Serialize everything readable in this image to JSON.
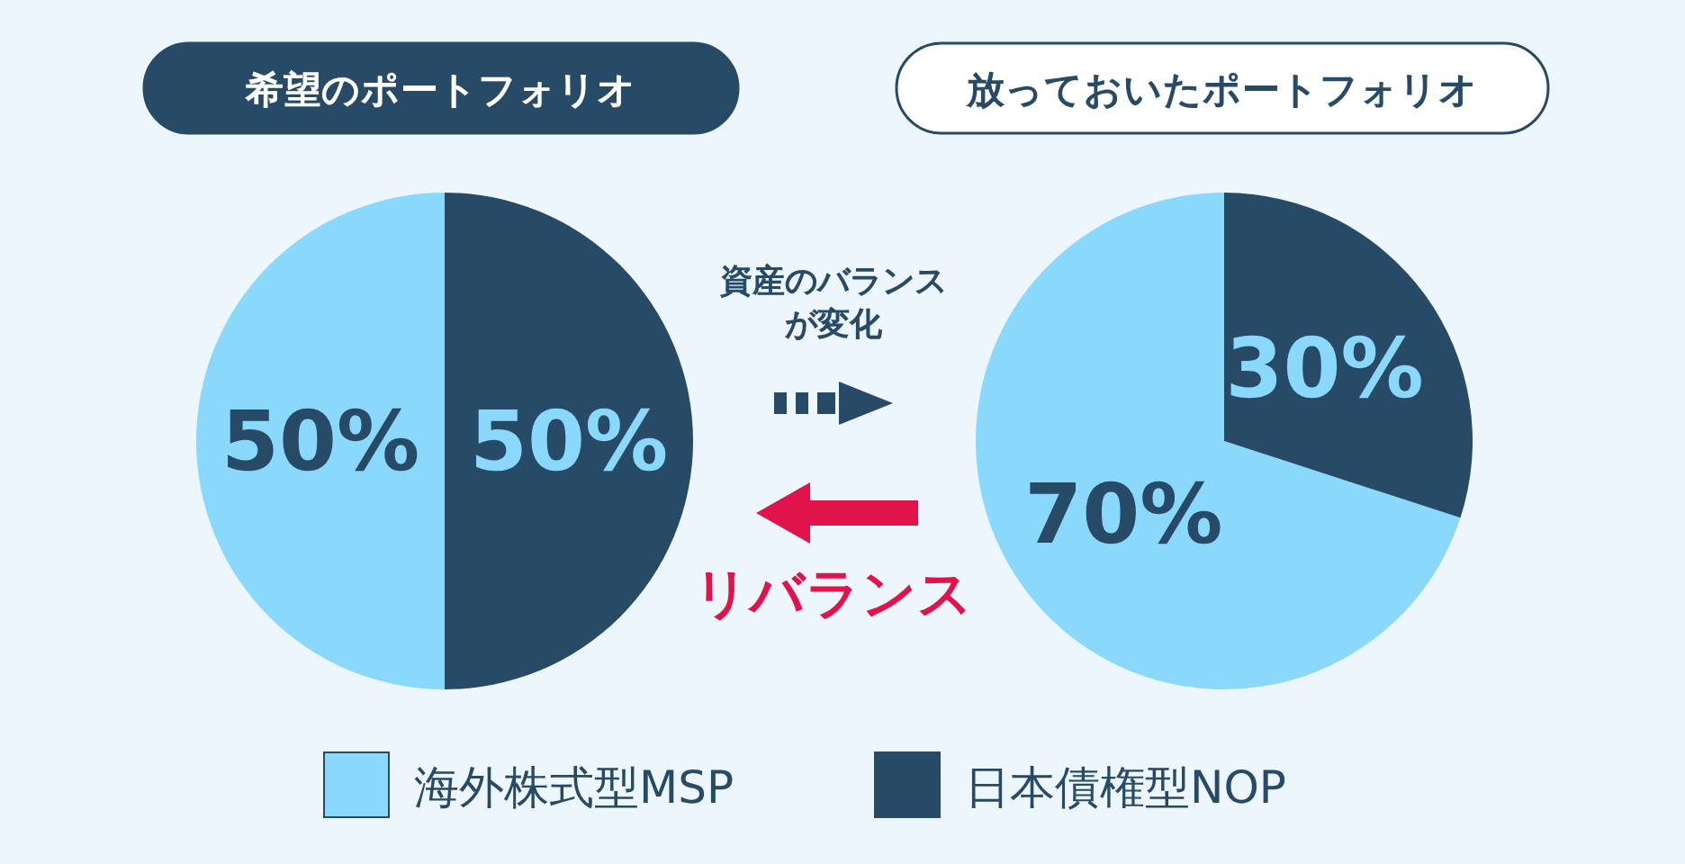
{
  "chart_data": [
    {
      "type": "pie",
      "title": "希望のポートフォリオ",
      "categories": [
        null,
        null
      ],
      "values": [
        50,
        50
      ],
      "colors": [
        "#8ad8fb",
        "#274a66"
      ],
      "value_labels": [
        "50%",
        "50%"
      ],
      "annotations": [
        "資産のバランス",
        "が変化",
        "リバランス"
      ]
    },
    {
      "type": "pie",
      "title": "放っておいたポートフォリオ",
      "categories": [
        "海外株式型MSP",
        "日本債権型NOP"
      ],
      "values": [
        70,
        30
      ],
      "colors": [
        "#8ad8fb",
        "#274a66"
      ],
      "value_labels": [
        "70%",
        "30%"
      ],
      "legend": "bottom"
    }
  ]
}
